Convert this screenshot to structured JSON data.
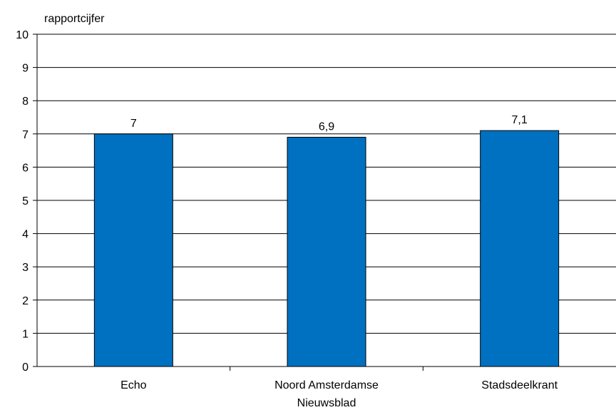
{
  "chart_data": {
    "type": "bar",
    "ylabel": "rapportcijfer",
    "categories": [
      [
        "Echo"
      ],
      [
        "Noord Amsterdamse",
        "Nieuwsblad"
      ],
      [
        "Stadsdeelkrant"
      ]
    ],
    "values": [
      7,
      6.9,
      7.1
    ],
    "data_labels": [
      "7",
      "6,9",
      "7,1"
    ],
    "ylim": [
      0,
      10
    ],
    "yticks": [
      0,
      1,
      2,
      3,
      4,
      5,
      6,
      7,
      8,
      9,
      10
    ],
    "grid": true,
    "bar_color": "#0070C0"
  }
}
